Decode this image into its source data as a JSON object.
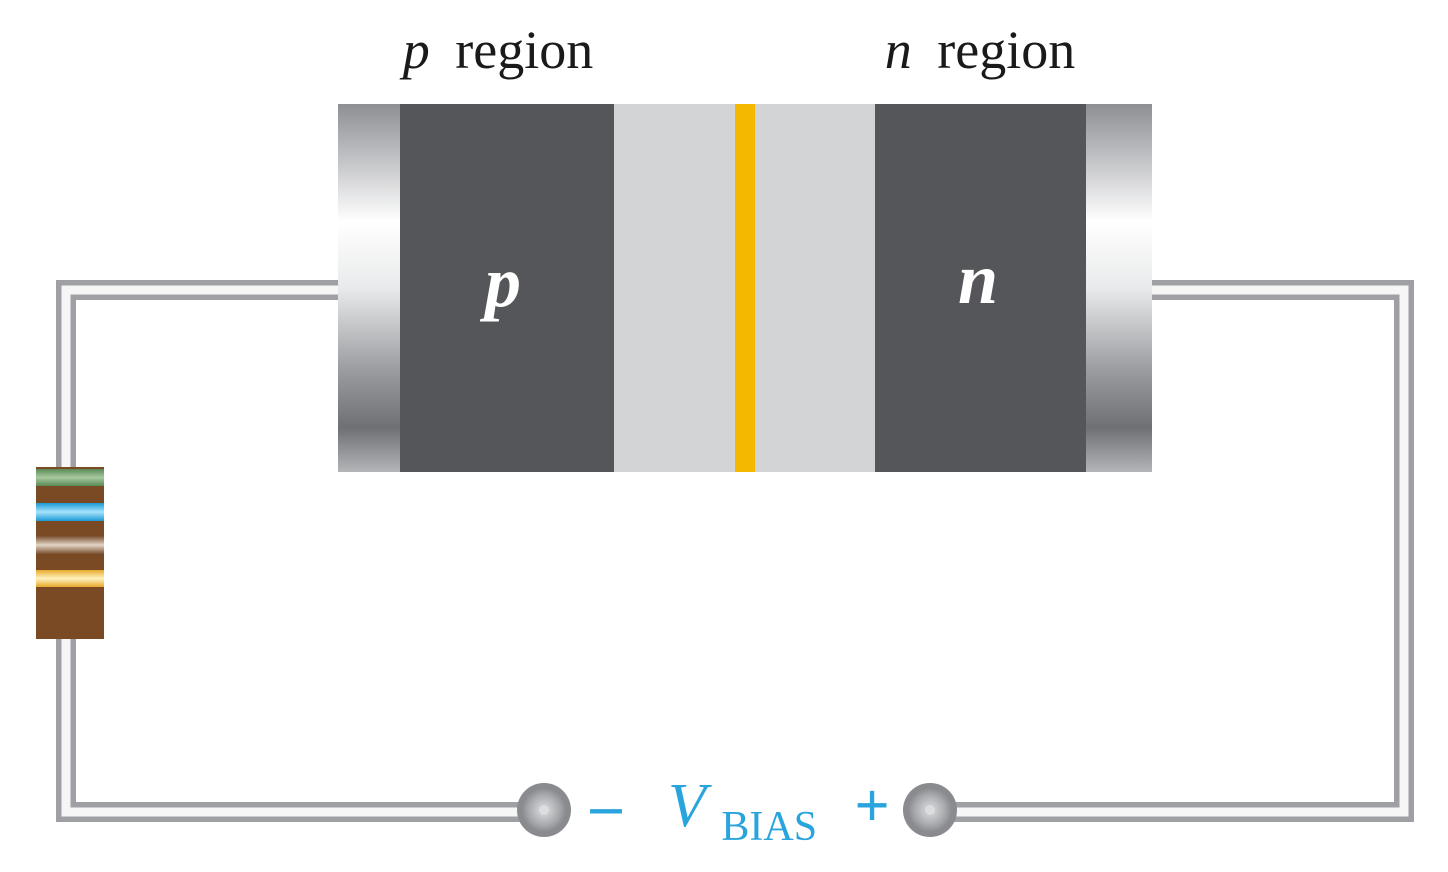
{
  "labels": {
    "p_region_italic": "p",
    "p_region_word": "region",
    "n_region_italic": "n",
    "n_region_word": "region",
    "p_body": "p",
    "n_body": "n",
    "minus_sign": "–",
    "plus_sign": "+",
    "vbias_main": "V",
    "vbias_sub": "BIAS"
  },
  "colors": {
    "semiconductor_dark": "#55565a",
    "depletion_light": "#d3d4d6",
    "junction": "#f5b800",
    "wire": "#c0c1c4",
    "bias_label": "#2aa4dc",
    "label_black": "#1a1a1a",
    "body_letter": "#ffffff"
  },
  "resistor_bands": [
    "green",
    "blue",
    "brown",
    "gold"
  ]
}
